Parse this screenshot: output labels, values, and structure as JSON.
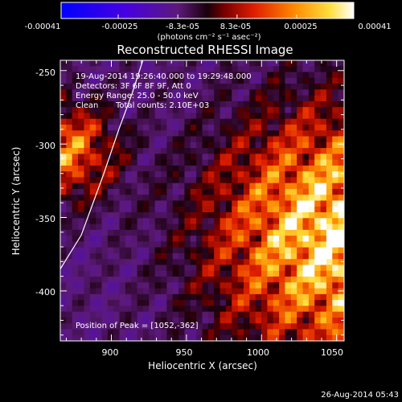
{
  "colorbar": {
    "tick_labels": [
      "-0.00041",
      "-0.00025",
      "-8.3e-05",
      "8.3e-05",
      "0.00025",
      "0.00041"
    ],
    "tick_values": [
      -0.00041,
      -0.00025,
      -8.3e-05,
      8.3e-05,
      0.00025,
      0.00041
    ],
    "range": [
      -0.00041,
      0.00041
    ],
    "unit_label": "(photons cm⁻² s⁻¹ asec⁻²)"
  },
  "overlay": {
    "time_range": "19-Aug-2014 19:26:40.000 to 19:29:48.000",
    "detectors": "Detectors: 3F 6F 8F 9F, Att 0",
    "energy": "Energy Range: 25.0 - 50.0 keV",
    "clean_label": "Clean",
    "total_counts": "Total counts: 2.10E+03",
    "peak": "Position of Peak = [1052,-362]"
  },
  "footer": {
    "timestamp": "26-Aug-2014 05:43"
  },
  "colors": {
    "background": "#000000",
    "colormap": [
      "#0000ff",
      "#5a00c8",
      "#7a2bb0",
      "#3c0028",
      "#c81400",
      "#ff5a00",
      "#ffa500",
      "#ffff3c",
      "#ffffff"
    ]
  },
  "chart_data": {
    "type": "heatmap",
    "title": "Reconstructed RHESSI Image",
    "xlabel": "Heliocentric X (arcsec)",
    "ylabel": "Heliocentric Y (arcsec)",
    "xlim": [
      866,
      1055
    ],
    "ylim": [
      -434,
      -243
    ],
    "x_ticks": [
      900,
      950,
      1000,
      1050
    ],
    "y_ticks": [
      -400,
      -350,
      -300,
      -250
    ],
    "peak_position": [
      1052,
      -362
    ],
    "grid": false,
    "limb_curve": {
      "x": [
        866,
        880,
        895,
        905,
        914,
        921
      ],
      "y": [
        -385,
        -362,
        -320,
        -290,
        -265,
        -243
      ]
    }
  }
}
